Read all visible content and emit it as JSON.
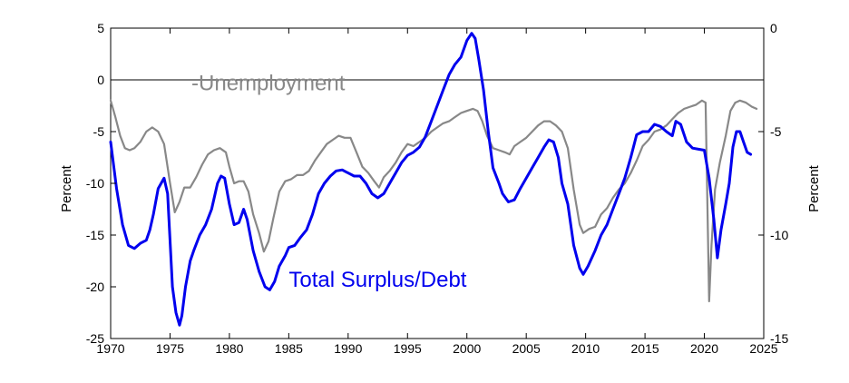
{
  "chart_data": {
    "type": "line",
    "title": "",
    "xlabel": "",
    "ylabel": "Percent",
    "y2label": "Percent",
    "xlim": [
      1970,
      2025
    ],
    "ylim": [
      -25,
      5
    ],
    "y2lim": [
      -15,
      0
    ],
    "grid": false,
    "x_ticks": [
      "1970",
      "1975",
      "1980",
      "1985",
      "1990",
      "1995",
      "2000",
      "2005",
      "2010",
      "2015",
      "2020",
      "2025"
    ],
    "y_ticks": [
      "5",
      "0",
      "-5",
      "-10",
      "-15",
      "-20",
      "-25"
    ],
    "y2_ticks": [
      "0",
      "-5",
      "-10",
      "-15"
    ],
    "series": [
      {
        "name": "Total Surplus/Debt",
        "axis": "left",
        "color": "#0000ee",
        "points": [
          [
            1970.0,
            -6.0
          ],
          [
            1970.5,
            -10.5
          ],
          [
            1971.0,
            -14.0
          ],
          [
            1971.5,
            -16.0
          ],
          [
            1972.0,
            -16.3
          ],
          [
            1972.5,
            -15.8
          ],
          [
            1973.0,
            -15.5
          ],
          [
            1973.3,
            -14.5
          ],
          [
            1973.6,
            -13.0
          ],
          [
            1974.0,
            -10.5
          ],
          [
            1974.5,
            -9.5
          ],
          [
            1974.8,
            -11.0
          ],
          [
            1975.2,
            -20.0
          ],
          [
            1975.5,
            -22.5
          ],
          [
            1975.8,
            -23.7
          ],
          [
            1976.0,
            -22.8
          ],
          [
            1976.3,
            -20.0
          ],
          [
            1976.7,
            -17.5
          ],
          [
            1977.0,
            -16.5
          ],
          [
            1977.5,
            -15.0
          ],
          [
            1978.0,
            -14.0
          ],
          [
            1978.5,
            -12.5
          ],
          [
            1979.0,
            -10.0
          ],
          [
            1979.3,
            -9.3
          ],
          [
            1979.6,
            -9.5
          ],
          [
            1980.0,
            -12.0
          ],
          [
            1980.4,
            -14.0
          ],
          [
            1980.8,
            -13.8
          ],
          [
            1981.2,
            -12.5
          ],
          [
            1981.5,
            -13.5
          ],
          [
            1982.0,
            -16.5
          ],
          [
            1982.5,
            -18.5
          ],
          [
            1983.0,
            -20.0
          ],
          [
            1983.4,
            -20.3
          ],
          [
            1983.8,
            -19.5
          ],
          [
            1984.2,
            -18.0
          ],
          [
            1984.7,
            -17.0
          ],
          [
            1985.0,
            -16.2
          ],
          [
            1985.5,
            -16.0
          ],
          [
            1986.0,
            -15.2
          ],
          [
            1986.5,
            -14.5
          ],
          [
            1987.0,
            -13.0
          ],
          [
            1987.5,
            -11.0
          ],
          [
            1988.0,
            -10.0
          ],
          [
            1988.5,
            -9.3
          ],
          [
            1989.0,
            -8.8
          ],
          [
            1989.5,
            -8.7
          ],
          [
            1990.0,
            -9.0
          ],
          [
            1990.5,
            -9.3
          ],
          [
            1991.0,
            -9.3
          ],
          [
            1991.5,
            -10.0
          ],
          [
            1992.0,
            -11.0
          ],
          [
            1992.5,
            -11.4
          ],
          [
            1993.0,
            -11.0
          ],
          [
            1993.5,
            -10.0
          ],
          [
            1994.0,
            -9.0
          ],
          [
            1994.5,
            -8.0
          ],
          [
            1995.0,
            -7.3
          ],
          [
            1995.5,
            -7.0
          ],
          [
            1996.0,
            -6.5
          ],
          [
            1996.5,
            -5.5
          ],
          [
            1997.0,
            -4.0
          ],
          [
            1997.5,
            -2.5
          ],
          [
            1998.0,
            -1.0
          ],
          [
            1998.5,
            0.5
          ],
          [
            1999.0,
            1.5
          ],
          [
            1999.5,
            2.2
          ],
          [
            2000.0,
            3.8
          ],
          [
            2000.4,
            4.5
          ],
          [
            2000.7,
            4.0
          ],
          [
            2001.0,
            2.0
          ],
          [
            2001.4,
            -1.0
          ],
          [
            2001.8,
            -5.0
          ],
          [
            2002.2,
            -8.5
          ],
          [
            2002.7,
            -10.0
          ],
          [
            2003.0,
            -11.0
          ],
          [
            2003.5,
            -11.8
          ],
          [
            2004.0,
            -11.6
          ],
          [
            2004.5,
            -10.5
          ],
          [
            2005.0,
            -9.5
          ],
          [
            2005.5,
            -8.5
          ],
          [
            2006.0,
            -7.5
          ],
          [
            2006.5,
            -6.5
          ],
          [
            2006.9,
            -5.8
          ],
          [
            2007.3,
            -6.0
          ],
          [
            2007.7,
            -7.5
          ],
          [
            2008.0,
            -10.0
          ],
          [
            2008.5,
            -12.0
          ],
          [
            2009.0,
            -16.0
          ],
          [
            2009.5,
            -18.2
          ],
          [
            2009.8,
            -18.8
          ],
          [
            2010.2,
            -18.0
          ],
          [
            2010.8,
            -16.5
          ],
          [
            2011.3,
            -15.0
          ],
          [
            2011.8,
            -14.0
          ],
          [
            2012.3,
            -12.5
          ],
          [
            2012.8,
            -11.0
          ],
          [
            2013.3,
            -9.5
          ],
          [
            2013.8,
            -7.5
          ],
          [
            2014.3,
            -5.3
          ],
          [
            2014.8,
            -5.0
          ],
          [
            2015.3,
            -5.0
          ],
          [
            2015.8,
            -4.3
          ],
          [
            2016.3,
            -4.5
          ],
          [
            2016.8,
            -5.0
          ],
          [
            2017.3,
            -5.4
          ],
          [
            2017.6,
            -4.0
          ],
          [
            2018.0,
            -4.3
          ],
          [
            2018.5,
            -6.0
          ],
          [
            2019.0,
            -6.6
          ],
          [
            2019.5,
            -6.7
          ],
          [
            2020.0,
            -6.8
          ],
          [
            2020.4,
            -9.5
          ],
          [
            2020.8,
            -13.5
          ],
          [
            2021.1,
            -17.2
          ],
          [
            2021.4,
            -14.5
          ],
          [
            2021.8,
            -12.0
          ],
          [
            2022.1,
            -10.0
          ],
          [
            2022.4,
            -6.5
          ],
          [
            2022.7,
            -5.0
          ],
          [
            2023.0,
            -5.0
          ],
          [
            2023.3,
            -6.0
          ],
          [
            2023.6,
            -7.0
          ],
          [
            2023.9,
            -7.2
          ]
        ]
      },
      {
        "name": "-Unemployment",
        "axis": "right",
        "color": "#888888",
        "points": [
          [
            1970.0,
            -3.5
          ],
          [
            1970.4,
            -4.3
          ],
          [
            1970.8,
            -5.2
          ],
          [
            1971.2,
            -5.8
          ],
          [
            1971.6,
            -5.9
          ],
          [
            1972.0,
            -5.8
          ],
          [
            1972.5,
            -5.5
          ],
          [
            1973.0,
            -5.0
          ],
          [
            1973.5,
            -4.8
          ],
          [
            1974.0,
            -5.0
          ],
          [
            1974.5,
            -5.6
          ],
          [
            1975.0,
            -7.5
          ],
          [
            1975.4,
            -8.9
          ],
          [
            1975.8,
            -8.4
          ],
          [
            1976.2,
            -7.7
          ],
          [
            1976.7,
            -7.7
          ],
          [
            1977.2,
            -7.2
          ],
          [
            1977.7,
            -6.6
          ],
          [
            1978.2,
            -6.1
          ],
          [
            1978.7,
            -5.9
          ],
          [
            1979.2,
            -5.8
          ],
          [
            1979.7,
            -6.0
          ],
          [
            1980.0,
            -6.7
          ],
          [
            1980.4,
            -7.5
          ],
          [
            1980.8,
            -7.4
          ],
          [
            1981.2,
            -7.4
          ],
          [
            1981.6,
            -7.9
          ],
          [
            1982.0,
            -9.0
          ],
          [
            1982.5,
            -9.9
          ],
          [
            1982.9,
            -10.8
          ],
          [
            1983.3,
            -10.3
          ],
          [
            1983.7,
            -9.2
          ],
          [
            1984.2,
            -7.9
          ],
          [
            1984.7,
            -7.4
          ],
          [
            1985.2,
            -7.3
          ],
          [
            1985.7,
            -7.1
          ],
          [
            1986.2,
            -7.1
          ],
          [
            1986.7,
            -6.9
          ],
          [
            1987.2,
            -6.4
          ],
          [
            1987.7,
            -6.0
          ],
          [
            1988.2,
            -5.6
          ],
          [
            1988.7,
            -5.4
          ],
          [
            1989.2,
            -5.2
          ],
          [
            1989.7,
            -5.3
          ],
          [
            1990.2,
            -5.3
          ],
          [
            1990.7,
            -6.0
          ],
          [
            1991.2,
            -6.7
          ],
          [
            1991.7,
            -7.0
          ],
          [
            1992.2,
            -7.4
          ],
          [
            1992.6,
            -7.7
          ],
          [
            1993.0,
            -7.2
          ],
          [
            1993.5,
            -6.9
          ],
          [
            1994.0,
            -6.5
          ],
          [
            1994.5,
            -6.0
          ],
          [
            1995.0,
            -5.6
          ],
          [
            1995.5,
            -5.7
          ],
          [
            1996.0,
            -5.5
          ],
          [
            1996.5,
            -5.3
          ],
          [
            1997.0,
            -5.0
          ],
          [
            1997.5,
            -4.8
          ],
          [
            1998.0,
            -4.6
          ],
          [
            1998.5,
            -4.5
          ],
          [
            1999.0,
            -4.3
          ],
          [
            1999.5,
            -4.1
          ],
          [
            2000.0,
            -4.0
          ],
          [
            2000.5,
            -3.9
          ],
          [
            2000.9,
            -4.0
          ],
          [
            2001.3,
            -4.5
          ],
          [
            2001.7,
            -5.2
          ],
          [
            2002.2,
            -5.8
          ],
          [
            2002.7,
            -5.9
          ],
          [
            2003.2,
            -6.0
          ],
          [
            2003.6,
            -6.1
          ],
          [
            2004.0,
            -5.7
          ],
          [
            2004.5,
            -5.5
          ],
          [
            2005.0,
            -5.3
          ],
          [
            2005.5,
            -5.0
          ],
          [
            2006.0,
            -4.7
          ],
          [
            2006.5,
            -4.5
          ],
          [
            2007.0,
            -4.5
          ],
          [
            2007.5,
            -4.7
          ],
          [
            2008.0,
            -5.0
          ],
          [
            2008.5,
            -5.8
          ],
          [
            2009.0,
            -7.8
          ],
          [
            2009.5,
            -9.5
          ],
          [
            2009.8,
            -9.9
          ],
          [
            2010.3,
            -9.7
          ],
          [
            2010.8,
            -9.6
          ],
          [
            2011.3,
            -9.0
          ],
          [
            2011.8,
            -8.7
          ],
          [
            2012.3,
            -8.2
          ],
          [
            2012.8,
            -7.8
          ],
          [
            2013.3,
            -7.5
          ],
          [
            2013.8,
            -7.0
          ],
          [
            2014.3,
            -6.4
          ],
          [
            2014.8,
            -5.7
          ],
          [
            2015.3,
            -5.4
          ],
          [
            2015.8,
            -5.0
          ],
          [
            2016.3,
            -4.9
          ],
          [
            2016.8,
            -4.7
          ],
          [
            2017.3,
            -4.4
          ],
          [
            2017.8,
            -4.1
          ],
          [
            2018.3,
            -3.9
          ],
          [
            2018.8,
            -3.8
          ],
          [
            2019.3,
            -3.7
          ],
          [
            2019.8,
            -3.5
          ],
          [
            2020.1,
            -3.6
          ],
          [
            2020.4,
            -13.2
          ],
          [
            2020.6,
            -10.5
          ],
          [
            2020.9,
            -7.8
          ],
          [
            2021.3,
            -6.5
          ],
          [
            2021.8,
            -5.2
          ],
          [
            2022.2,
            -4.0
          ],
          [
            2022.6,
            -3.6
          ],
          [
            2023.0,
            -3.5
          ],
          [
            2023.5,
            -3.6
          ],
          [
            2024.0,
            -3.8
          ],
          [
            2024.4,
            -3.9
          ]
        ]
      }
    ],
    "annotations": [
      {
        "text": "-Unemployment",
        "series": 1,
        "x": 1976.8,
        "y": -3.0,
        "color": "#888888"
      },
      {
        "text": "Total Surplus/Debt",
        "series": 0,
        "x": 1985.0,
        "y": -20.0,
        "color": "#0000ee"
      }
    ],
    "reference_line": {
      "y": 0,
      "color": "#000000"
    }
  }
}
